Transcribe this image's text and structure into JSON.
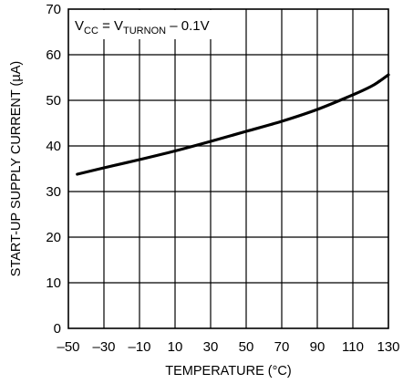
{
  "chart_data": {
    "type": "line",
    "xlabel": "TEMPERATURE (°C)",
    "ylabel": "START-UP SUPPLY CURRENT (µA)",
    "xlim": [
      -50,
      130
    ],
    "ylim": [
      0,
      70
    ],
    "x_ticks": [
      "–50",
      "–30",
      "–10",
      "10",
      "30",
      "50",
      "70",
      "90",
      "110",
      "130"
    ],
    "x_tick_values": [
      -50,
      -30,
      -10,
      10,
      30,
      50,
      70,
      90,
      110,
      130
    ],
    "y_ticks": [
      "0",
      "10",
      "20",
      "30",
      "40",
      "50",
      "60",
      "70"
    ],
    "y_tick_values": [
      0,
      10,
      20,
      30,
      40,
      50,
      60,
      70
    ],
    "grid": true,
    "annotation": {
      "v": "V",
      "cc_sub": "CC",
      "eq": " = V",
      "turnon_sub": "TURNON",
      "tail": " – 0.1V"
    },
    "series": [
      {
        "x": [
          -45,
          -30,
          -10,
          10,
          30,
          50,
          70,
          90,
          110,
          120,
          125,
          130
        ],
        "values": [
          33.8,
          35.2,
          37.0,
          38.9,
          41.0,
          43.2,
          45.4,
          48.0,
          51.2,
          53.0,
          54.2,
          55.6
        ]
      }
    ]
  }
}
